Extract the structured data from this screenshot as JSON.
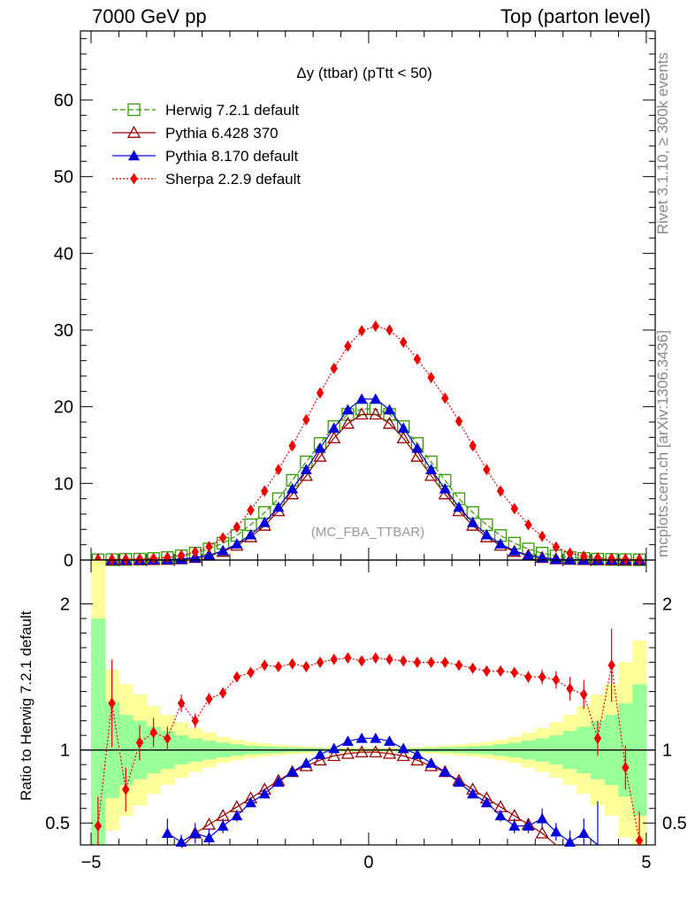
{
  "header": {
    "left_label": "7000 GeV pp",
    "right_label": "Top (parton level)"
  },
  "side": {
    "rivet": "Rivet 3.1.10, ≥ 300k events",
    "mcplots": "mcplots.cern.ch [arXiv:1306.3436]"
  },
  "colors": {
    "herwig": "#339900",
    "pythia6": "#990000",
    "pythia8": "#0000dd",
    "sherpa": "#ee0000",
    "band_yellow": "#ffff99",
    "band_green": "#99ff99"
  },
  "chart_data": [
    {
      "type": "line",
      "title": "Δy (ttbar) (pTtt < 50)",
      "analysis_label": "(MC_FBA_TTBAR)",
      "xlabel": "",
      "ylabel": "",
      "xlim": [
        -5,
        5
      ],
      "ylim": [
        0,
        69
      ],
      "xticks": [
        "−5",
        "0",
        "5"
      ],
      "yticks": [
        "0",
        "10",
        "20",
        "30",
        "40",
        "50",
        "60"
      ],
      "legend_position": "top-left",
      "x": [
        -4.875,
        -4.625,
        -4.375,
        -4.125,
        -3.875,
        -3.625,
        -3.375,
        -3.125,
        -2.875,
        -2.625,
        -2.375,
        -2.125,
        -1.875,
        -1.625,
        -1.375,
        -1.125,
        -0.875,
        -0.625,
        -0.375,
        -0.125,
        0.125,
        0.375,
        0.625,
        0.875,
        1.125,
        1.375,
        1.625,
        1.875,
        2.125,
        2.375,
        2.625,
        2.875,
        3.125,
        3.375,
        3.625,
        3.875,
        4.125,
        4.375,
        4.625,
        4.875
      ],
      "series": [
        {
          "name": "Herwig 7.2.1 default",
          "marker": "open-square",
          "line": "dashed",
          "values": [
            0.03,
            0.05,
            0.08,
            0.12,
            0.2,
            0.32,
            0.55,
            0.9,
            1.45,
            2.2,
            3.2,
            4.6,
            6.2,
            8.0,
            10.4,
            12.8,
            15.2,
            17.4,
            19.0,
            19.7,
            19.7,
            19.0,
            17.4,
            15.2,
            12.8,
            10.4,
            8.0,
            6.2,
            4.6,
            3.2,
            2.2,
            1.45,
            0.9,
            0.55,
            0.32,
            0.2,
            0.12,
            0.08,
            0.05,
            0.03
          ]
        },
        {
          "name": "Pythia 6.428 370",
          "marker": "open-triangle",
          "line": "solid",
          "values": [
            0.0,
            0.0,
            0.0,
            0.01,
            0.02,
            0.05,
            0.12,
            0.3,
            0.6,
            1.1,
            1.9,
            3.0,
            4.5,
            6.4,
            8.6,
            11.0,
            13.5,
            15.9,
            17.8,
            19.0,
            19.0,
            17.8,
            15.9,
            13.5,
            11.0,
            8.6,
            6.4,
            4.5,
            3.0,
            1.9,
            1.1,
            0.6,
            0.3,
            0.12,
            0.05,
            0.02,
            0.01,
            0.0,
            0.0,
            0.0
          ]
        },
        {
          "name": "Pythia 8.170 default",
          "marker": "filled-triangle",
          "line": "solid",
          "values": [
            0.0,
            0.0,
            0.0,
            0.0,
            0.02,
            0.04,
            0.1,
            0.3,
            0.62,
            1.2,
            2.1,
            3.3,
            4.9,
            6.9,
            9.3,
            11.8,
            14.6,
            17.2,
            19.6,
            21.0,
            21.0,
            19.6,
            17.2,
            14.6,
            11.8,
            9.3,
            6.9,
            4.9,
            3.3,
            2.1,
            1.2,
            0.62,
            0.3,
            0.1,
            0.04,
            0.02,
            0.0,
            0.0,
            0.0,
            0.0
          ]
        },
        {
          "name": "Sherpa 2.2.9 default",
          "marker": "filled-diamond",
          "line": "dotted",
          "values": [
            0.02,
            0.07,
            0.1,
            0.15,
            0.22,
            0.35,
            0.6,
            1.05,
            1.75,
            2.9,
            4.3,
            6.5,
            9.0,
            11.8,
            14.9,
            18.3,
            21.8,
            25.0,
            27.9,
            29.9,
            30.5,
            30.0,
            28.4,
            26.2,
            23.8,
            21.1,
            18.1,
            14.9,
            11.8,
            9.0,
            6.7,
            4.6,
            3.1,
            1.7,
            0.9,
            0.5,
            0.3,
            0.2,
            0.1,
            0.05
          ]
        }
      ]
    },
    {
      "type": "line",
      "title": "",
      "xlabel": "",
      "ylabel": "Ratio to Herwig 7.2.1 default",
      "xlim": [
        -5,
        5
      ],
      "ylim": [
        0.35,
        2.3
      ],
      "xticks": [
        "−5",
        "0",
        "5"
      ],
      "yticks": [
        "0.5",
        "1",
        "2"
      ],
      "reference_line": 1,
      "x": [
        -4.875,
        -4.625,
        -4.375,
        -4.125,
        -3.875,
        -3.625,
        -3.375,
        -3.125,
        -2.875,
        -2.625,
        -2.375,
        -2.125,
        -1.875,
        -1.625,
        -1.375,
        -1.125,
        -0.875,
        -0.625,
        -0.375,
        -0.125,
        0.125,
        0.375,
        0.625,
        0.875,
        1.125,
        1.375,
        1.625,
        1.875,
        2.125,
        2.375,
        2.625,
        2.875,
        3.125,
        3.375,
        3.625,
        3.875,
        4.125,
        4.375,
        4.625,
        4.875
      ],
      "band_yellow": [
        1.3,
        0.55,
        0.45,
        0.38,
        0.3,
        0.24,
        0.19,
        0.15,
        0.12,
        0.09,
        0.07,
        0.055,
        0.045,
        0.037,
        0.03,
        0.025,
        0.02,
        0.018,
        0.016,
        0.015,
        0.015,
        0.016,
        0.018,
        0.02,
        0.025,
        0.03,
        0.037,
        0.045,
        0.055,
        0.07,
        0.09,
        0.12,
        0.15,
        0.19,
        0.24,
        0.3,
        0.38,
        0.45,
        0.6,
        0.75
      ],
      "band_green": [
        0.9,
        0.33,
        0.24,
        0.2,
        0.16,
        0.13,
        0.1,
        0.08,
        0.065,
        0.05,
        0.04,
        0.03,
        0.025,
        0.02,
        0.017,
        0.014,
        0.012,
        0.01,
        0.009,
        0.008,
        0.008,
        0.009,
        0.01,
        0.012,
        0.014,
        0.017,
        0.02,
        0.025,
        0.03,
        0.04,
        0.05,
        0.065,
        0.08,
        0.1,
        0.13,
        0.16,
        0.2,
        0.24,
        0.32,
        0.45
      ],
      "series": [
        {
          "name": "Pythia 6.428 370",
          "values": [
            null,
            null,
            null,
            null,
            null,
            null,
            0.33,
            0.43,
            0.49,
            0.55,
            0.61,
            0.67,
            0.73,
            0.79,
            0.85,
            0.89,
            0.93,
            0.96,
            0.975,
            0.985,
            0.985,
            0.975,
            0.96,
            0.93,
            0.89,
            0.85,
            0.79,
            0.73,
            0.67,
            0.61,
            0.55,
            0.49,
            0.43,
            0.35,
            null,
            null,
            null,
            null,
            null,
            null
          ]
        },
        {
          "name": "Pythia 8.170 default",
          "values": [
            null,
            null,
            null,
            null,
            null,
            0.43,
            0.37,
            0.43,
            0.4,
            0.48,
            0.55,
            0.64,
            0.7,
            0.78,
            0.85,
            0.91,
            0.97,
            1.01,
            1.06,
            1.08,
            1.08,
            1.06,
            1.01,
            0.97,
            0.91,
            0.85,
            0.78,
            0.7,
            0.64,
            0.55,
            0.48,
            0.48,
            0.53,
            0.44,
            0.37,
            0.43,
            0.35,
            null,
            null,
            null
          ],
          "errors": [
            0,
            0,
            0,
            0,
            0,
            0.1,
            0.05,
            0.07,
            0.06,
            0.05,
            0.04,
            0.03,
            0.03,
            0.02,
            0.02,
            0.01,
            0.01,
            0.01,
            0.01,
            0.01,
            0.01,
            0.01,
            0.01,
            0.01,
            0.01,
            0.02,
            0.02,
            0.03,
            0.03,
            0.04,
            0.05,
            0.05,
            0.07,
            0.06,
            0.08,
            0.1,
            0.3,
            0,
            0,
            0
          ]
        },
        {
          "name": "Sherpa 2.2.9 default",
          "values": [
            0.48,
            1.32,
            0.73,
            1.05,
            1.12,
            1.08,
            1.32,
            1.2,
            1.35,
            1.39,
            1.5,
            1.53,
            1.58,
            1.57,
            1.59,
            1.57,
            1.6,
            1.62,
            1.63,
            1.61,
            1.63,
            1.62,
            1.61,
            1.6,
            1.6,
            1.6,
            1.58,
            1.56,
            1.54,
            1.54,
            1.53,
            1.5,
            1.5,
            1.48,
            1.42,
            1.38,
            1.08,
            1.58,
            0.88,
            0.38
          ],
          "errors": [
            0.2,
            0.3,
            0.15,
            0.12,
            0.1,
            0.08,
            0.06,
            0.05,
            0.04,
            0.03,
            0.02,
            0.02,
            0.015,
            0.015,
            0.01,
            0.01,
            0.01,
            0.01,
            0.01,
            0.01,
            0.01,
            0.01,
            0.01,
            0.01,
            0.01,
            0.01,
            0.015,
            0.015,
            0.02,
            0.02,
            0.03,
            0.04,
            0.05,
            0.06,
            0.08,
            0.1,
            0.12,
            0.25,
            0.15,
            0.2
          ]
        }
      ]
    }
  ]
}
